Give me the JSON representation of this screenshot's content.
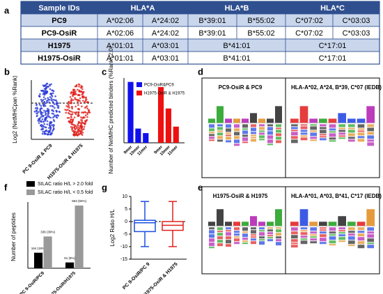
{
  "panels": {
    "a": "a",
    "b": "b",
    "c": "c",
    "d": "d",
    "e": "e",
    "f": "f",
    "g": "g"
  },
  "table": {
    "header": [
      "Sample IDs",
      "HLA*A",
      "HLA*B",
      "HLA*C"
    ],
    "rows": [
      [
        "PC9",
        "A*02:06",
        "A*24:02",
        "B*39:01",
        "B*55:02",
        "C*07:02",
        "C*03:03"
      ],
      [
        "PC9-OsiR",
        "A*02:06",
        "A*24:02",
        "B*39:01",
        "B*55:02",
        "C*07:02",
        "C*03:03"
      ],
      [
        "H1975",
        "A*01:01",
        "A*03:01",
        "B*41:01",
        "C*17:01"
      ],
      [
        "H1975-OsiR",
        "A*01:01",
        "A*03:01",
        "B*41:01",
        "C*17:01"
      ]
    ]
  },
  "dot_plot": {
    "y_label": "Log2 (NetMHCpan %Rank)",
    "categories": [
      "PC 9-OsiR & PC9",
      "H1975-OsiR & H1975"
    ],
    "colors": [
      "#2a3bd6",
      "#e0201b"
    ]
  },
  "chart_data": [
    {
      "type": "bar",
      "layout": "series",
      "y_label": "Number of NetMHC predicted binders (%Rank<2.0)",
      "categories": [
        "9mer",
        "10mer",
        "11mer"
      ],
      "ylim": [
        0,
        500
      ],
      "series": [
        {
          "name": "PC9-OsiR&PC9",
          "color": "#1010ee",
          "values": [
            470,
            110,
            75
          ]
        },
        {
          "name": "H1975-OsiR & H1975",
          "color": "#ee1010",
          "values": [
            430,
            265,
            125
          ]
        }
      ]
    },
    {
      "type": "bar",
      "layout": "category",
      "y_label": "Number of peptides",
      "categories": [
        "PC 9-OsiR/PC9",
        "H1975-OsiR/H1975"
      ],
      "ylim": [
        0,
        700
      ],
      "series": [
        {
          "name": "SILAC ratio H/L > 2.0 fold",
          "color": "#000000",
          "values": [
            164,
            61
          ],
          "value_labels": [
            "164 (18%)",
            "61 (8%)"
          ]
        },
        {
          "name": "SILAC ratio H/L < 0.5 fold",
          "color": "#999999",
          "values": [
            336,
            663
          ],
          "value_labels": [
            "336 (39%)",
            "663 (84%)"
          ]
        }
      ]
    },
    {
      "type": "box",
      "y_label": "Log2 Ratio H/L",
      "categories": [
        "PC 9-OsiR/PC 9",
        "H1975-OsiR & H1975"
      ],
      "ylim": [
        -15,
        10
      ],
      "yticks": [
        -15,
        -10,
        -5,
        0,
        5,
        10
      ],
      "boxes": [
        {
          "color": "#1a4fe0",
          "min": -10,
          "q1": -4,
          "median": -0.5,
          "q3": 0.5,
          "max": 8
        },
        {
          "color": "#e0201b",
          "min": -10,
          "q1": -3.5,
          "median": -1.5,
          "q3": 0,
          "max": 8
        }
      ]
    }
  ],
  "logos": [
    {
      "left": "PC9-OsiR & PC9",
      "right": "HLA-A*02, A*24, B*39, C*07 (IEDB)"
    },
    {
      "left": "H1975-OsiR & H1975",
      "right": "HLA-A*01, A*03, B*41, C*17 (IEDB)"
    }
  ]
}
